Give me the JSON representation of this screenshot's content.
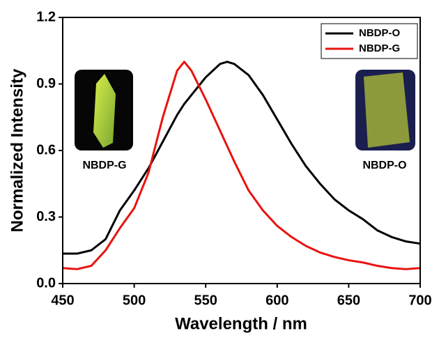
{
  "chart_data": {
    "type": "line",
    "xlabel": "Wavelength / nm",
    "ylabel": "Normalized Intensity",
    "x": [
      450,
      460,
      470,
      480,
      490,
      500,
      510,
      520,
      530,
      535,
      540,
      550,
      560,
      565,
      570,
      580,
      590,
      600,
      610,
      620,
      630,
      640,
      650,
      660,
      670,
      680,
      690,
      700
    ],
    "series": [
      {
        "name": "NBDP-O",
        "color": "#000000",
        "values": [
          0.135,
          0.135,
          0.15,
          0.2,
          0.33,
          0.42,
          0.52,
          0.64,
          0.76,
          0.81,
          0.85,
          0.93,
          0.99,
          1.0,
          0.99,
          0.94,
          0.85,
          0.74,
          0.63,
          0.53,
          0.45,
          0.38,
          0.33,
          0.29,
          0.24,
          0.21,
          0.19,
          0.18
        ]
      },
      {
        "name": "NBDP-G",
        "color": "#e8130f",
        "values": [
          0.07,
          0.065,
          0.08,
          0.15,
          0.25,
          0.34,
          0.5,
          0.75,
          0.96,
          1.0,
          0.96,
          0.83,
          0.69,
          0.62,
          0.55,
          0.42,
          0.33,
          0.26,
          0.21,
          0.17,
          0.14,
          0.12,
          0.105,
          0.095,
          0.08,
          0.07,
          0.065,
          0.07
        ]
      }
    ],
    "xlim": [
      450,
      700
    ],
    "xticks": [
      450,
      500,
      550,
      600,
      650,
      700
    ],
    "ylim": [
      0,
      1.2
    ],
    "yticks": [
      {
        "value": 0,
        "label": "0.0"
      },
      0.3,
      0.6,
      0.9,
      1.2
    ],
    "legend": "upper right",
    "annotations": [
      "NBDP-G",
      "NBDP-O"
    ]
  }
}
